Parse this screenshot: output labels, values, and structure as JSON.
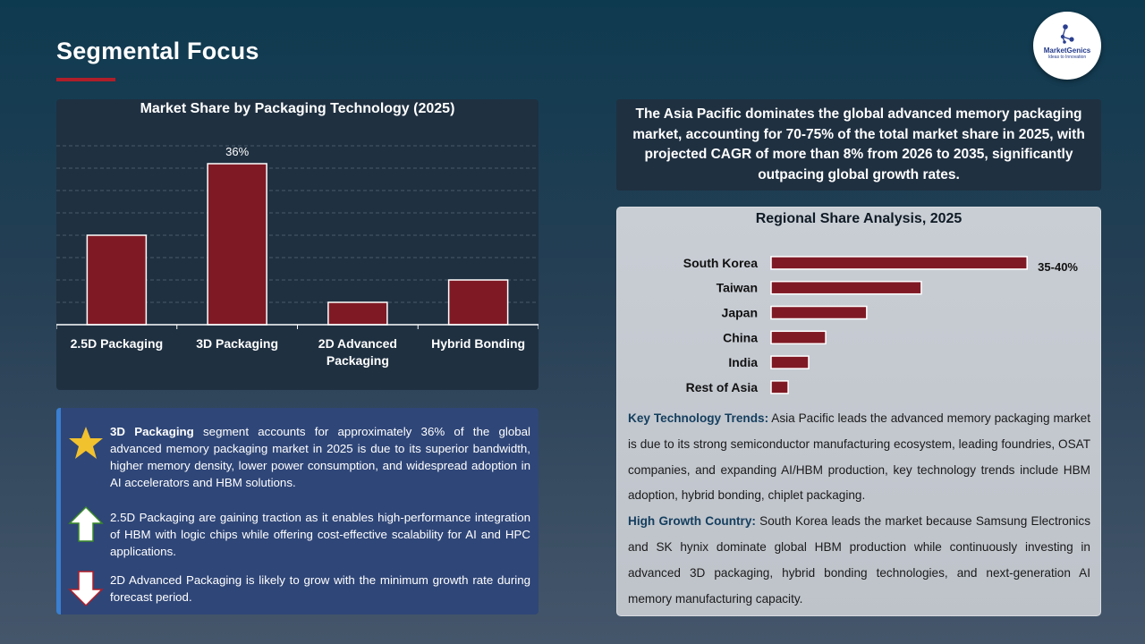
{
  "page": {
    "title": "Segmental Focus"
  },
  "logo": {
    "name": "MarketGenics",
    "tagline": "Ideas to Innovation"
  },
  "chart_data": [
    {
      "type": "bar",
      "title": "Market Share by Packaging Technology (2025)",
      "categories": [
        "2.5D Packaging",
        "3D Packaging",
        "2D Advanced Packaging",
        "Hybrid Bonding"
      ],
      "category_lines": [
        [
          "2.5D Packaging"
        ],
        [
          "3D Packaging"
        ],
        [
          "2D Advanced",
          "Packaging"
        ],
        [
          "Hybrid Bonding"
        ]
      ],
      "values": [
        20,
        36,
        5,
        10
      ],
      "data_labels": [
        "",
        "36%",
        "",
        ""
      ],
      "ylim": [
        0,
        40
      ],
      "grid": true,
      "bar_color": "#7f1a25"
    },
    {
      "type": "bar",
      "orientation": "horizontal",
      "title": "Regional Share Analysis, 2025",
      "categories": [
        "South Korea",
        "Taiwan",
        "Japan",
        "China",
        "India",
        "Rest of Asia"
      ],
      "values": [
        37.5,
        22,
        14,
        8,
        5.5,
        2.5
      ],
      "data_labels": [
        "35-40%",
        "",
        "",
        "",
        "",
        ""
      ],
      "xlim": [
        0,
        38
      ],
      "bar_color": "#7f1a25"
    }
  ],
  "bullets": [
    {
      "icon": "star-icon",
      "bold": "3D Packaging",
      "text": " segment accounts for approximately 36% of the global advanced memory packaging market in 2025 is due to its superior bandwidth, higher memory density, lower power consumption, and widespread adoption in AI accelerators and HBM solutions."
    },
    {
      "icon": "arrow-up-icon",
      "bold": "",
      "text": "2.5D Packaging are gaining traction as it enables high-performance integration of HBM with logic chips while offering cost-effective scalability for AI and HPC applications."
    },
    {
      "icon": "arrow-down-icon",
      "bold": "",
      "text": "2D Advanced Packaging is likely to grow with the minimum growth rate during forecast period."
    }
  ],
  "summary": {
    "text": "The Asia Pacific dominates the global advanced memory packaging market, accounting for 70-75% of the total market share in 2025, with projected CAGR of more than 8% from 2026 to 2035, significantly outpacing global growth rates."
  },
  "region_notes": {
    "trends_label": "Key Technology Trends:",
    "trends_text": " Asia Pacific leads the advanced memory packaging market is due to its strong semiconductor manufacturing ecosystem, leading foundries, OSAT companies, and expanding AI/HBM production, key technology trends include HBM adoption, hybrid bonding, chiplet packaging.",
    "country_label": "High Growth Country:",
    "country_text": " South Korea leads the market because Samsung Electronics and SK hynix dominate global HBM production while continuously investing in advanced 3D packaging, hybrid bonding technologies, and next-generation AI memory manufacturing capacity."
  },
  "colors": {
    "accent_red": "#b01e2a",
    "bar": "#7f1a25",
    "highlight_blue": "#143e5e",
    "star": "#f2c12e"
  }
}
